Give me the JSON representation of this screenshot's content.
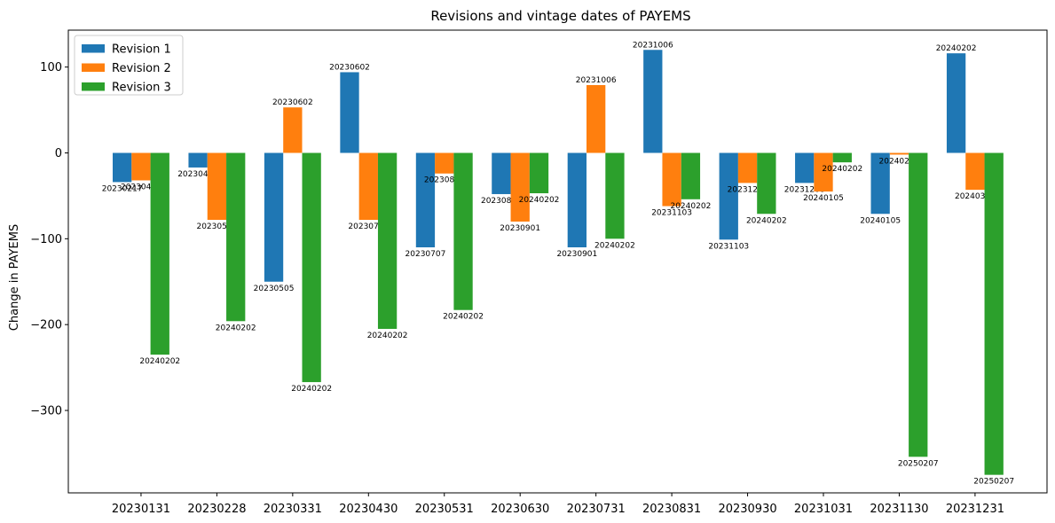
{
  "chart_data": {
    "type": "bar",
    "title": "Revisions and vintage dates of PAYEMS",
    "xlabel": "",
    "ylabel": "Change in PAYEMS",
    "ylim": [
      -396,
      143
    ],
    "yticks": [
      100,
      0,
      -100,
      -200,
      -300
    ],
    "ytick_labels": [
      "100",
      "0",
      "−100",
      "−200",
      "−300"
    ],
    "legend_position": "top-left",
    "categories": [
      "20230131",
      "20230228",
      "20230331",
      "20230430",
      "20230531",
      "20230630",
      "20230731",
      "20230831",
      "20230930",
      "20231031",
      "20231130",
      "20231231"
    ],
    "series": [
      {
        "name": "Revision 1",
        "color": "#1f77b4",
        "values": [
          -34,
          -17,
          -150,
          94,
          -110,
          -48,
          -110,
          120,
          -101,
          -35,
          -71,
          116
        ],
        "labels": [
          "20230217",
          "20230407",
          "20230505",
          "20230602",
          "20230707",
          "20230804",
          "20230901",
          "20231006",
          "20231103",
          "20231208",
          "20240105",
          "20240202"
        ]
      },
      {
        "name": "Revision 2",
        "color": "#ff7f0e",
        "values": [
          -32,
          -78,
          53,
          -78,
          -24,
          -80,
          79,
          -62,
          -35,
          -45,
          -2,
          -43
        ],
        "labels": [
          "20230407",
          "20230505",
          "20230602",
          "20230707",
          "20230804",
          "20230901",
          "20231006",
          "20231103",
          "20231208",
          "20240105",
          "20240202",
          "20240308"
        ]
      },
      {
        "name": "Revision 3",
        "color": "#2ca02c",
        "values": [
          -235,
          -196,
          -267,
          -205,
          -183,
          -47,
          -100,
          -54,
          -71,
          -11,
          -354,
          -375
        ],
        "labels": [
          "20240202",
          "20240202",
          "20240202",
          "20240202",
          "20240202",
          "20240202",
          "20240202",
          "20240202",
          "20240202",
          "20240202",
          "20250207",
          "20250207"
        ]
      }
    ]
  }
}
